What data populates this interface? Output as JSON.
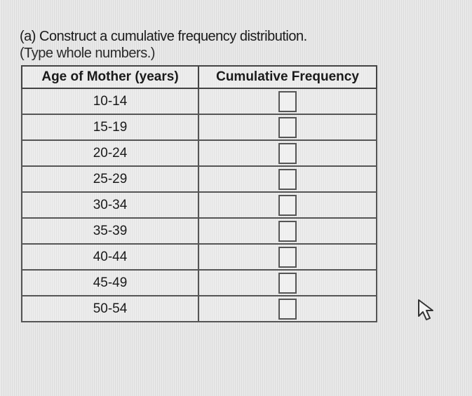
{
  "question": {
    "label": "(a) Construct a cumulative frequency distribution.",
    "instruction": "(Type whole numbers.)"
  },
  "table": {
    "headers": [
      "Age of Mother (years)",
      "Cumulative Frequency"
    ],
    "rows": [
      "10-14",
      "15-19",
      "20-24",
      "25-29",
      "30-34",
      "35-39",
      "40-44",
      "45-49",
      "50-54"
    ]
  }
}
